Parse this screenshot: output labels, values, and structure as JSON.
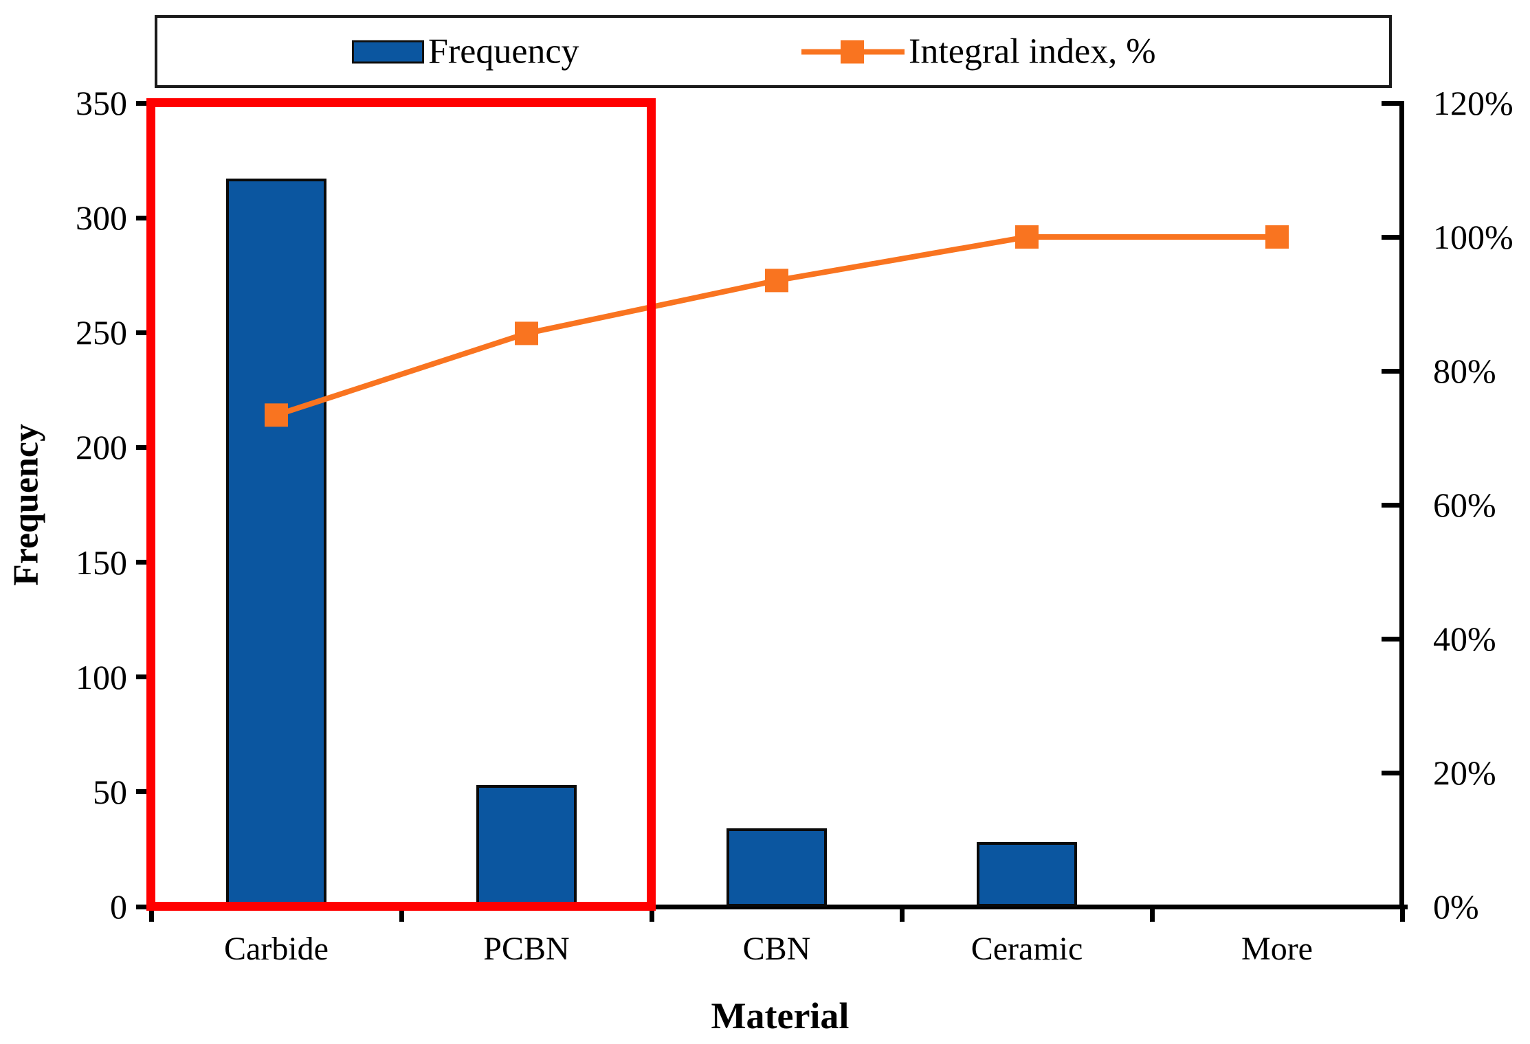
{
  "chart_data": {
    "type": "bar",
    "subtype": "pareto (column + cumulative line, dual axis)",
    "categories": [
      "Carbide",
      "PCBN",
      "CBN",
      "Ceramic",
      "More"
    ],
    "series": [
      {
        "name": "Frequency",
        "type": "bar",
        "axis": "left",
        "values": [
          317,
          53,
          34,
          28,
          0
        ],
        "color": "#0b56a0",
        "border_color": "#0a0a0a"
      },
      {
        "name": "Integral index, %",
        "type": "line",
        "axis": "right",
        "values_percent": [
          73.4,
          85.6,
          93.5,
          100,
          100
        ],
        "color": "#f97420",
        "marker": "square"
      }
    ],
    "title": "",
    "xlabel": "Material",
    "ylabel_left": "Frequency",
    "ylabel_right": "",
    "left_axis": {
      "min": 0,
      "max": 350,
      "tick_step": 50,
      "tick_labels_top_to_bottom": [
        "350",
        "300",
        "250",
        "200",
        "150",
        "100",
        "50",
        "0"
      ]
    },
    "right_axis": {
      "min": 0,
      "max": 120,
      "tick_step": 20,
      "tick_labels_top_to_bottom": [
        "120%",
        "100%",
        "80%",
        "60%",
        "40%",
        "20%",
        "0%"
      ]
    },
    "legend": {
      "position": "top",
      "border": true,
      "items": [
        {
          "label": "Frequency",
          "swatch": "filled-rectangle",
          "color": "#0b56a0"
        },
        {
          "label": "Integral index, %",
          "swatch": "line-with-square-marker",
          "color": "#f97420"
        }
      ]
    },
    "grid": false,
    "annotations": [
      {
        "type": "highlight-rectangle",
        "color": "#ff0000",
        "covers_categories": [
          "Carbide",
          "PCBN"
        ],
        "meaning": "red box highlighting the vital-few categories of the Pareto chart"
      }
    ]
  }
}
